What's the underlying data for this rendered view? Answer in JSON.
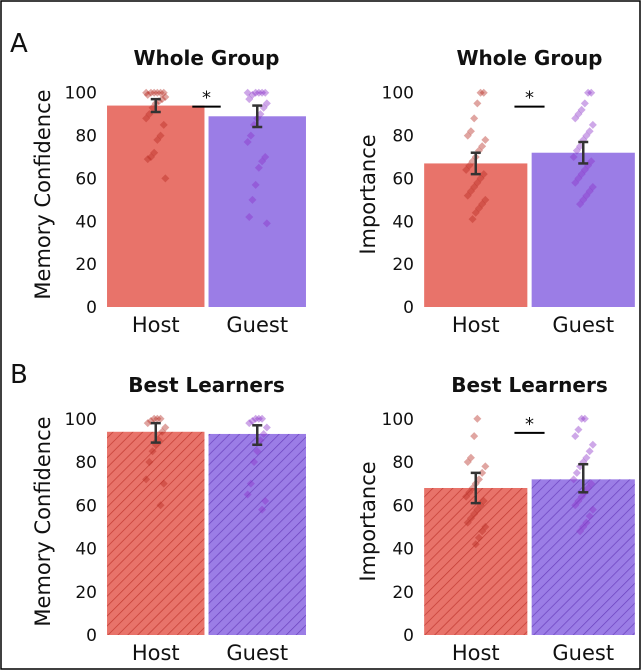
{
  "figure": {
    "panel_labels": [
      "A",
      "B"
    ]
  },
  "colors": {
    "host_bar": "#e8736a",
    "guest_bar": "#9b7de6",
    "host_point": "#b5281e",
    "guest_point": "#8b2fc9",
    "error_bar": "#333333",
    "sig_line": "#000000",
    "frame": "#000000"
  },
  "chart_data": [
    {
      "type": "bar",
      "panel": "A",
      "title": "Whole Group",
      "ylabel": "Memory Confidence",
      "categories": [
        "Host",
        "Guest"
      ],
      "values": [
        94,
        89
      ],
      "error": [
        [
          91,
          97
        ],
        [
          84,
          94
        ]
      ],
      "ylim": [
        0,
        105
      ],
      "yticks": [
        0,
        20,
        40,
        60,
        80,
        100
      ],
      "hatched": false,
      "significance": "*",
      "points": [
        [
          100,
          100,
          100,
          100,
          100,
          100,
          99,
          98,
          97,
          96,
          95,
          93,
          90,
          88,
          85,
          80,
          78,
          72,
          70,
          69,
          60
        ],
        [
          100,
          100,
          100,
          100,
          100,
          99,
          97,
          95,
          93,
          90,
          88,
          85,
          80,
          77,
          70,
          68,
          65,
          57,
          50,
          42,
          39
        ]
      ]
    },
    {
      "type": "bar",
      "panel": "A",
      "title": "Whole Group",
      "ylabel": "Importance",
      "categories": [
        "Host",
        "Guest"
      ],
      "values": [
        67,
        72
      ],
      "error": [
        [
          62,
          72
        ],
        [
          67,
          77
        ]
      ],
      "ylim": [
        0,
        105
      ],
      "yticks": [
        0,
        20,
        40,
        60,
        80,
        100
      ],
      "hatched": false,
      "significance": "*",
      "points": [
        [
          100,
          100,
          95,
          88,
          82,
          80,
          78,
          75,
          73,
          70,
          68,
          66,
          64,
          62,
          60,
          58,
          56,
          54,
          52,
          50,
          48,
          46,
          44,
          41
        ],
        [
          100,
          100,
          95,
          92,
          90,
          88,
          85,
          82,
          80,
          78,
          75,
          73,
          70,
          68,
          66,
          64,
          62,
          60,
          58,
          56,
          54,
          52,
          50,
          48
        ]
      ]
    },
    {
      "type": "bar",
      "panel": "B",
      "title": "Best Learners",
      "ylabel": "Memory Confidence",
      "categories": [
        "Host",
        "Guest"
      ],
      "values": [
        94,
        93
      ],
      "error": [
        [
          89,
          98
        ],
        [
          88,
          97
        ]
      ],
      "ylim": [
        0,
        105
      ],
      "yticks": [
        0,
        20,
        40,
        60,
        80,
        100
      ],
      "hatched": true,
      "significance": "",
      "points": [
        [
          100,
          100,
          100,
          99,
          98,
          96,
          94,
          90,
          88,
          85,
          80,
          72,
          70,
          60
        ],
        [
          100,
          100,
          100,
          99,
          98,
          96,
          93,
          90,
          85,
          80,
          70,
          65,
          62,
          58
        ]
      ]
    },
    {
      "type": "bar",
      "panel": "B",
      "title": "Best Learners",
      "ylabel": "Importance",
      "categories": [
        "Host",
        "Guest"
      ],
      "values": [
        68,
        72
      ],
      "error": [
        [
          61,
          75
        ],
        [
          66,
          79
        ]
      ],
      "ylim": [
        0,
        105
      ],
      "yticks": [
        0,
        20,
        40,
        60,
        80,
        100
      ],
      "hatched": true,
      "significance": "*",
      "points": [
        [
          100,
          92,
          82,
          80,
          78,
          75,
          72,
          70,
          68,
          66,
          64,
          62,
          60,
          58,
          56,
          54,
          52,
          50,
          48,
          45,
          42
        ],
        [
          100,
          100,
          95,
          92,
          88,
          85,
          82,
          80,
          78,
          75,
          72,
          70,
          68,
          66,
          64,
          62,
          60,
          58,
          55,
          52,
          50,
          48
        ]
      ]
    }
  ]
}
